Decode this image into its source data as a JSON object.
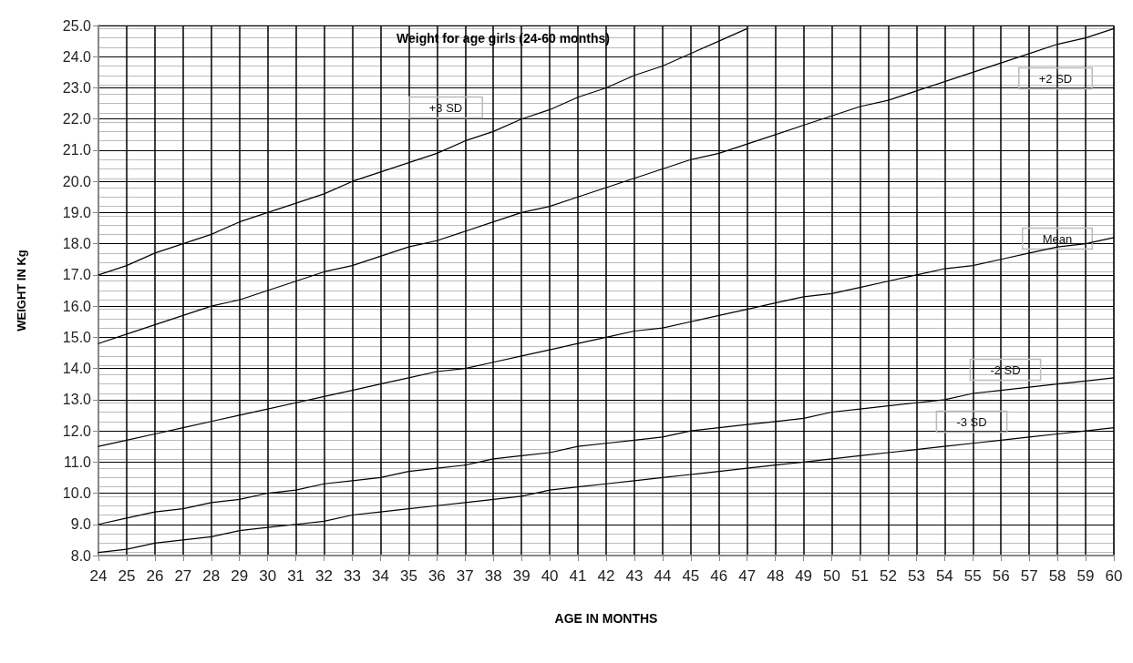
{
  "chart_data": {
    "type": "line",
    "title": "Weight for age girls (24-60 months)",
    "xlabel": "AGE IN MONTHS",
    "ylabel": "WEIGHT IN Kg",
    "categories": [
      "24",
      "25",
      "26",
      "27",
      "28",
      "29",
      "30",
      "31",
      "32",
      "33",
      "34",
      "35",
      "36",
      "37",
      "38",
      "39",
      "40",
      "41",
      "42",
      "43",
      "44",
      "45",
      "46",
      "47",
      "48",
      "49",
      "50",
      "51",
      "52",
      "53",
      "54",
      "55",
      "56",
      "57",
      "58",
      "59",
      "60"
    ],
    "series": [
      {
        "name": "+3 SD",
        "color": "#000000",
        "values": [
          17.0,
          17.3,
          17.7,
          18.0,
          18.3,
          18.7,
          19.0,
          19.3,
          19.6,
          20.0,
          20.3,
          20.6,
          20.9,
          21.3,
          21.6,
          22.0,
          22.3,
          22.7,
          23.0,
          23.4,
          23.7,
          24.1,
          24.5,
          24.9,
          null,
          null,
          null,
          null,
          null,
          null,
          null,
          null,
          null,
          null,
          null,
          null,
          null
        ]
      },
      {
        "name": "+2 SD",
        "color": "#000000",
        "values": [
          14.8,
          15.1,
          15.4,
          15.7,
          16.0,
          16.2,
          16.5,
          16.8,
          17.1,
          17.3,
          17.6,
          17.9,
          18.1,
          18.4,
          18.7,
          19.0,
          19.2,
          19.5,
          19.8,
          20.1,
          20.4,
          20.7,
          20.9,
          21.2,
          21.5,
          21.8,
          22.1,
          22.4,
          22.6,
          22.9,
          23.2,
          23.5,
          23.8,
          24.1,
          24.4,
          24.6,
          24.9
        ]
      },
      {
        "name": "Mean",
        "color": "#000000",
        "values": [
          11.5,
          11.7,
          11.9,
          12.1,
          12.3,
          12.5,
          12.7,
          12.9,
          13.1,
          13.3,
          13.5,
          13.7,
          13.9,
          14.0,
          14.2,
          14.4,
          14.6,
          14.8,
          15.0,
          15.2,
          15.3,
          15.5,
          15.7,
          15.9,
          16.1,
          16.3,
          16.4,
          16.6,
          16.8,
          17.0,
          17.2,
          17.3,
          17.5,
          17.7,
          17.9,
          18.0,
          18.2
        ]
      },
      {
        "name": "-2 SD",
        "color": "#000000",
        "values": [
          9.0,
          9.2,
          9.4,
          9.5,
          9.7,
          9.8,
          10.0,
          10.1,
          10.3,
          10.4,
          10.5,
          10.7,
          10.8,
          10.9,
          11.1,
          11.2,
          11.3,
          11.5,
          11.6,
          11.7,
          11.8,
          12.0,
          12.1,
          12.2,
          12.3,
          12.4,
          12.6,
          12.7,
          12.8,
          12.9,
          13.0,
          13.2,
          13.3,
          13.4,
          13.5,
          13.6,
          13.7
        ]
      },
      {
        "name": "-3 SD",
        "color": "#000000",
        "values": [
          8.1,
          8.2,
          8.4,
          8.5,
          8.6,
          8.8,
          8.9,
          9.0,
          9.1,
          9.3,
          9.4,
          9.5,
          9.6,
          9.7,
          9.8,
          9.9,
          10.1,
          10.2,
          10.3,
          10.4,
          10.5,
          10.6,
          10.7,
          10.8,
          10.9,
          11.0,
          11.1,
          11.2,
          11.3,
          11.4,
          11.5,
          11.6,
          11.7,
          11.8,
          11.9,
          12.0,
          12.1
        ]
      }
    ],
    "ylim": [
      8,
      25
    ],
    "yticks": [
      {
        "value": 8,
        "label": "8.0"
      },
      {
        "value": 9,
        "label": "9.0"
      },
      {
        "value": 10,
        "label": "10.0"
      },
      {
        "value": 11,
        "label": "11.0"
      },
      {
        "value": 12,
        "label": "12.0"
      },
      {
        "value": 13,
        "label": "13.0"
      },
      {
        "value": 14,
        "label": "14.0"
      },
      {
        "value": 15,
        "label": "15.0"
      },
      {
        "value": 16,
        "label": "16.0"
      },
      {
        "value": 17,
        "label": "17.0"
      },
      {
        "value": 18,
        "label": "18.0"
      },
      {
        "value": 19,
        "label": "19.0"
      },
      {
        "value": 20,
        "label": "20.0"
      },
      {
        "value": 21,
        "label": "21.0"
      },
      {
        "value": 22,
        "label": "22.0"
      },
      {
        "value": 23,
        "label": "23.0"
      },
      {
        "value": 24,
        "label": "24.0"
      },
      {
        "value": 25,
        "label": "25.0"
      }
    ],
    "grid": true,
    "legend": false,
    "marker": "none",
    "line_style": "solid"
  }
}
